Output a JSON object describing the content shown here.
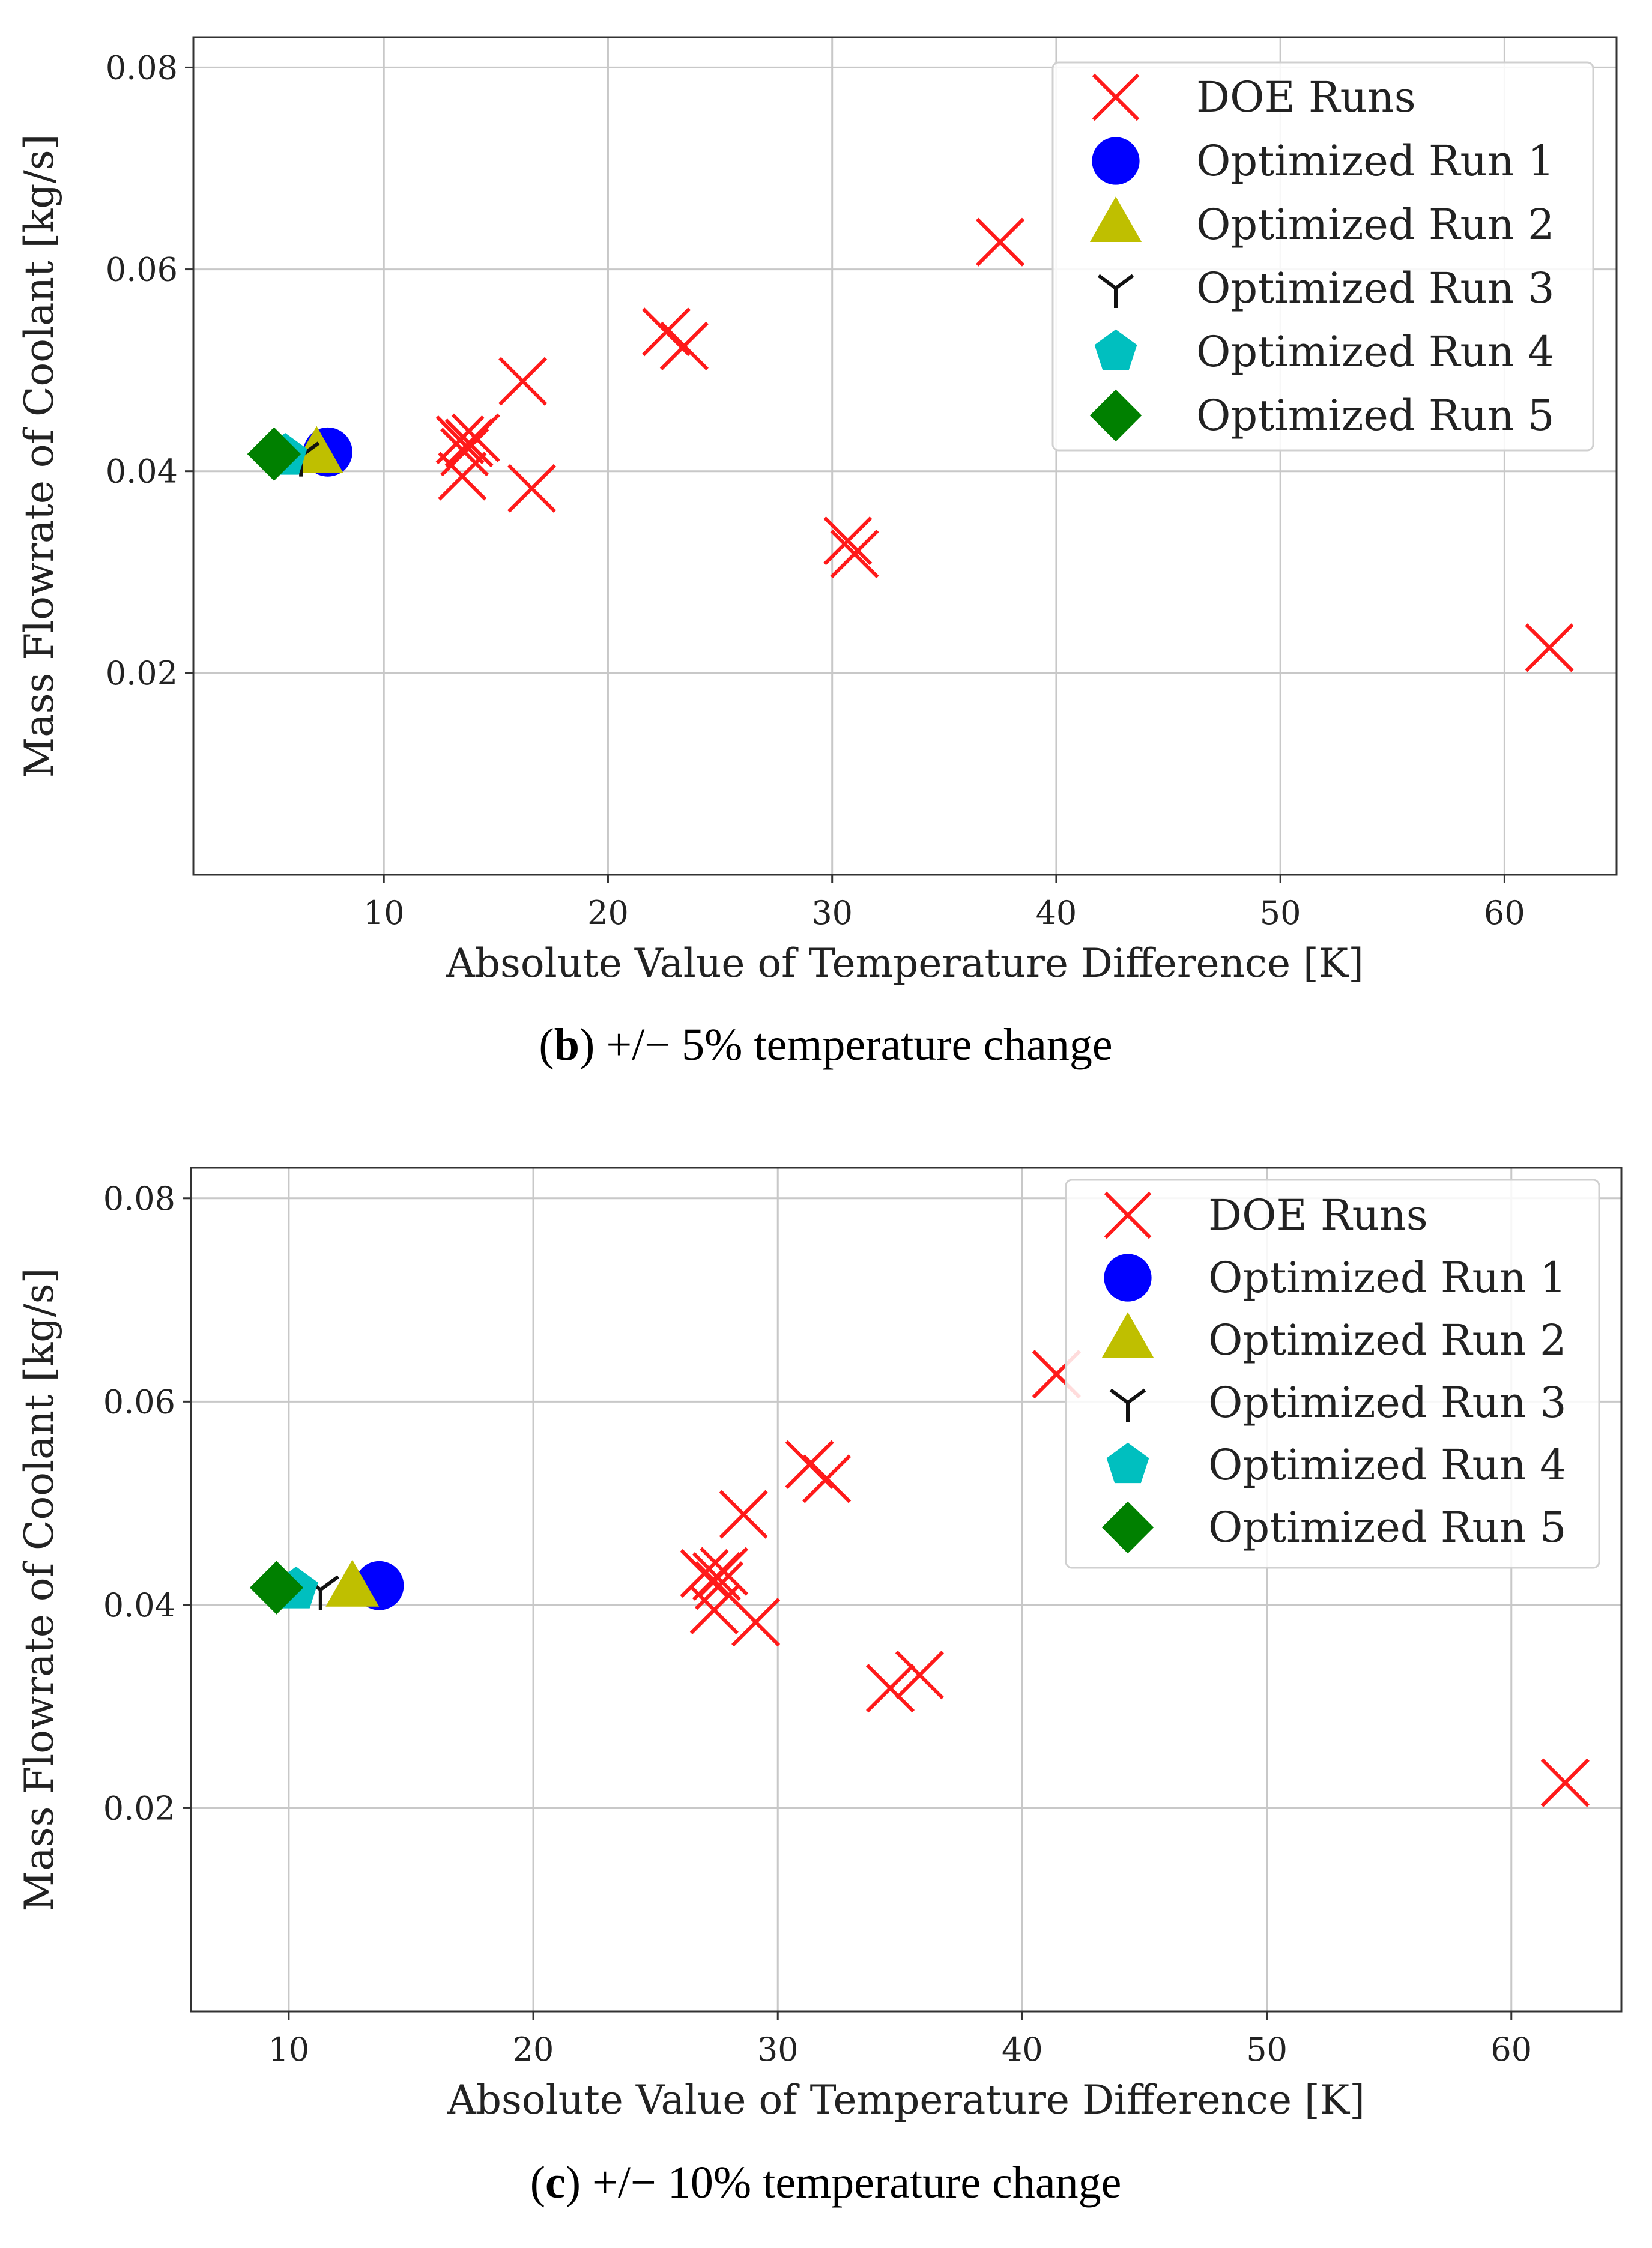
{
  "colors": {
    "doe": "#ff1a1a",
    "run1": "#0000ff",
    "run2": "#bfbf00",
    "run3": "#111111",
    "run4": "#00bfbf",
    "run5": "#008000",
    "grid": "#c8c8c8",
    "axis": "#333333"
  },
  "chart_data": [
    {
      "id": "b",
      "type": "scatter",
      "caption_letter": "b",
      "caption_rest": "+/− 5% temperature change",
      "xlabel": "Absolute Value of Temperature Difference [K]",
      "ylabel": "Mass Flowrate of Coolant [kg/s]",
      "xlim": [
        1.5,
        65
      ],
      "ylim": [
        0.0,
        0.083
      ],
      "xticks": [
        10,
        20,
        30,
        40,
        50,
        60
      ],
      "xtick_labels": [
        "10",
        "20",
        "30",
        "40",
        "50",
        "60"
      ],
      "yticks": [
        0.02,
        0.04,
        0.06,
        0.08
      ],
      "ytick_labels": [
        "0.02",
        "0.04",
        "0.06",
        "0.08"
      ],
      "grid": true,
      "legend_position": "upper-right",
      "series": [
        {
          "name": "DOE Runs",
          "marker": "x",
          "color_key": "doe",
          "points": [
            [
              37.5,
              0.0627
            ],
            [
              22.6,
              0.0538
            ],
            [
              23.4,
              0.0524
            ],
            [
              16.2,
              0.0489
            ],
            [
              13.4,
              0.0431
            ],
            [
              13.8,
              0.0428
            ],
            [
              14.1,
              0.0433
            ],
            [
              13.6,
              0.0419
            ],
            [
              13.5,
              0.0395
            ],
            [
              16.6,
              0.0383
            ],
            [
              30.7,
              0.0331
            ],
            [
              31.0,
              0.0318
            ],
            [
              62.0,
              0.0225
            ]
          ]
        },
        {
          "name": "Optimized Run 1",
          "marker": "circle",
          "color_key": "run1",
          "points": [
            [
              7.5,
              0.0419
            ]
          ]
        },
        {
          "name": "Optimized Run 2",
          "marker": "triangle",
          "color_key": "run2",
          "points": [
            [
              7.0,
              0.0416
            ]
          ]
        },
        {
          "name": "Optimized Run 3",
          "marker": "tri_down",
          "color_key": "run3",
          "points": [
            [
              6.3,
              0.0415
            ]
          ]
        },
        {
          "name": "Optimized Run 4",
          "marker": "pentagon",
          "color_key": "run4",
          "points": [
            [
              5.6,
              0.0415
            ]
          ]
        },
        {
          "name": "Optimized Run 5",
          "marker": "diamond",
          "color_key": "run5",
          "points": [
            [
              5.1,
              0.0417
            ]
          ]
        }
      ]
    },
    {
      "id": "c",
      "type": "scatter",
      "caption_letter": "c",
      "caption_rest": "+/− 10% temperature change",
      "xlabel": "Absolute Value of Temperature Difference [K]",
      "ylabel": "Mass Flowrate of Coolant [kg/s]",
      "xlim": [
        6,
        64.5
      ],
      "ylim": [
        0.0,
        0.083
      ],
      "xticks": [
        10,
        20,
        30,
        40,
        50,
        60
      ],
      "xtick_labels": [
        "10",
        "20",
        "30",
        "40",
        "50",
        "60"
      ],
      "yticks": [
        0.02,
        0.04,
        0.06,
        0.08
      ],
      "ytick_labels": [
        "0.02",
        "0.04",
        "0.06",
        "0.08"
      ],
      "grid": true,
      "legend_position": "upper-right",
      "series": [
        {
          "name": "DOE Runs",
          "marker": "x",
          "color_key": "doe",
          "points": [
            [
              41.4,
              0.0627
            ],
            [
              31.3,
              0.0538
            ],
            [
              32.0,
              0.0524
            ],
            [
              28.6,
              0.0489
            ],
            [
              27.0,
              0.0431
            ],
            [
              27.5,
              0.0428
            ],
            [
              27.8,
              0.0433
            ],
            [
              27.6,
              0.0419
            ],
            [
              27.4,
              0.0395
            ],
            [
              29.1,
              0.0383
            ],
            [
              35.8,
              0.0331
            ],
            [
              34.6,
              0.0318
            ],
            [
              62.2,
              0.0225
            ]
          ]
        },
        {
          "name": "Optimized Run 1",
          "marker": "circle",
          "color_key": "run1",
          "points": [
            [
              13.7,
              0.0419
            ]
          ]
        },
        {
          "name": "Optimized Run 2",
          "marker": "triangle",
          "color_key": "run2",
          "points": [
            [
              12.6,
              0.0416
            ]
          ]
        },
        {
          "name": "Optimized Run 3",
          "marker": "tri_down",
          "color_key": "run3",
          "points": [
            [
              11.3,
              0.0415
            ]
          ]
        },
        {
          "name": "Optimized Run 4",
          "marker": "pentagon",
          "color_key": "run4",
          "points": [
            [
              10.3,
              0.0415
            ]
          ]
        },
        {
          "name": "Optimized Run 5",
          "marker": "diamond",
          "color_key": "run5",
          "points": [
            [
              9.5,
              0.0417
            ]
          ]
        }
      ]
    }
  ]
}
